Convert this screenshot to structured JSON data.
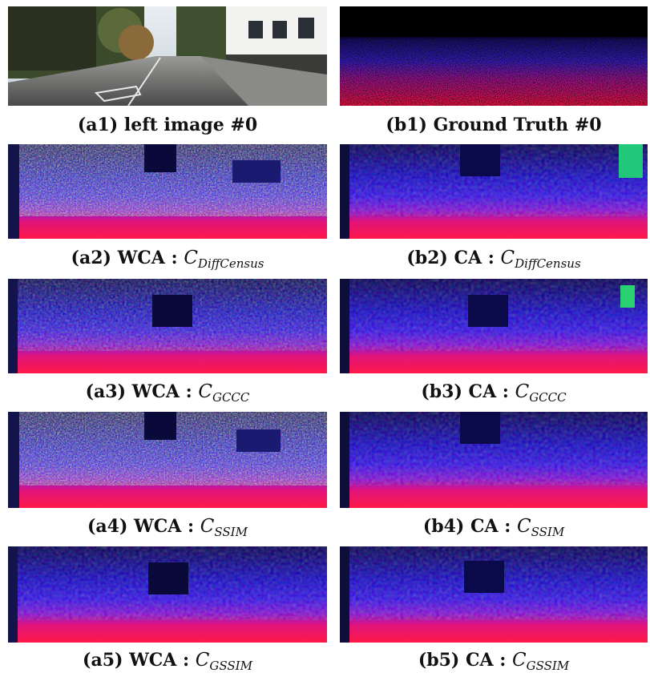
{
  "figure": {
    "panels": [
      {
        "id": "a1",
        "kind": "photo"
      },
      {
        "id": "b1",
        "kind": "groundtruth"
      },
      {
        "id": "a2",
        "kind": "noisy-strong"
      },
      {
        "id": "b2",
        "kind": "clean"
      },
      {
        "id": "a3",
        "kind": "noisy-mid"
      },
      {
        "id": "b3",
        "kind": "clean"
      },
      {
        "id": "a4",
        "kind": "noisy-strong"
      },
      {
        "id": "b4",
        "kind": "clean"
      },
      {
        "id": "a5",
        "kind": "noisy-light"
      },
      {
        "id": "b5",
        "kind": "clean"
      }
    ],
    "captions": [
      {
        "id": "a1",
        "label": "(a1) left image #0",
        "symbol": "",
        "subscript": ""
      },
      {
        "id": "b1",
        "label": "(b1) Ground Truth #0",
        "symbol": "",
        "subscript": ""
      },
      {
        "id": "a2",
        "label": "(a2) WCA : ",
        "symbol": "C",
        "subscript": "DiffCensus"
      },
      {
        "id": "b2",
        "label": "(b2) CA : ",
        "symbol": "C",
        "subscript": "DiffCensus"
      },
      {
        "id": "a3",
        "label": "(a3) WCA : ",
        "symbol": "C",
        "subscript": "GCCC"
      },
      {
        "id": "b3",
        "label": "(b3) CA : ",
        "symbol": "C",
        "subscript": "GCCC"
      },
      {
        "id": "a4",
        "label": "(a4) WCA : ",
        "symbol": "C",
        "subscript": "SSIM"
      },
      {
        "id": "b4",
        "label": "(b4) CA : ",
        "symbol": "C",
        "subscript": "SSIM"
      },
      {
        "id": "a5",
        "label": "(a5) WCA : ",
        "symbol": "C",
        "subscript": "GSSIM"
      },
      {
        "id": "b5",
        "label": "(b5) CA : ",
        "symbol": "C",
        "subscript": "GSSIM"
      }
    ]
  }
}
